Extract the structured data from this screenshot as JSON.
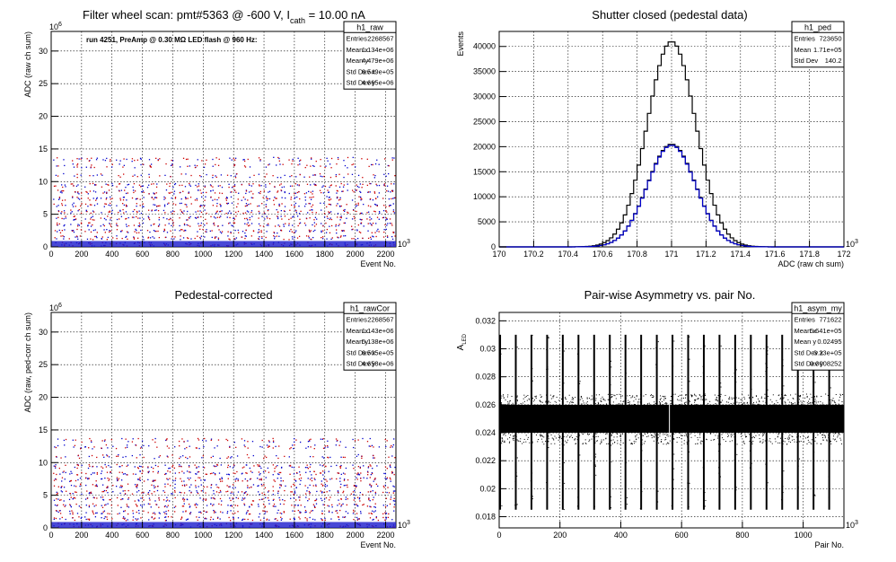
{
  "chart_data": [
    {
      "type": "scatter",
      "id": "raw",
      "title": "Filter wheel scan: pmt#5363 @  -600 V, I",
      "title_sub": "cath",
      "title_tail": " = 10.00 nA",
      "annotation": "run 4251, PreAmp @ 0.30 MΩ LED flash @  960 Hz:",
      "xlabel": "Event No.",
      "ylabel": "ADC (raw ch sum)",
      "xlim": [
        0,
        2268
      ],
      "ylim": [
        0,
        33
      ],
      "x_ticks": [
        0,
        200,
        400,
        600,
        800,
        1000,
        1200,
        1400,
        1600,
        1800,
        2000,
        2200
      ],
      "y_ticks": [
        0,
        5,
        10,
        15,
        20,
        25,
        30
      ],
      "x_exponent": "10",
      "x_exponent_power": "3",
      "y_exponent": "10",
      "y_exponent_power": "6",
      "grid": true,
      "series": [
        {
          "color": "#0000cc",
          "cycles": 22,
          "levels": [
            0.5,
            1.5,
            2.5,
            3.5,
            4.5,
            5.5,
            6.5,
            7.5,
            8.5,
            9.5,
            11.0,
            12.5,
            13.5
          ]
        },
        {
          "color": "#cc0000",
          "cycles": 22,
          "levels": [
            0.5,
            1.5,
            2.5,
            3.5,
            4.5,
            5.5,
            6.5,
            7.5,
            8.5,
            9.5,
            11.0,
            12.5,
            13.5
          ]
        }
      ],
      "stats": {
        "name": "h1_raw",
        "rows": [
          {
            "label": "Entries",
            "value": "2268567"
          },
          {
            "label": "Mean x",
            "value": "1.134e+06"
          },
          {
            "label": "Mean y",
            "value": "4.479e+06"
          },
          {
            "label": "Std Dev x",
            "value": "6.549e+05"
          },
          {
            "label": "Std Dev y",
            "value": "4.665e+06"
          }
        ]
      }
    },
    {
      "type": "line",
      "id": "ped",
      "title": "Shutter closed (pedestal data)",
      "xlabel": "ADC (raw ch sum)",
      "ylabel": "Events",
      "xlim": [
        170,
        172
      ],
      "ylim": [
        0,
        43000
      ],
      "x_ticks": [
        170,
        170.2,
        170.4,
        170.6,
        170.8,
        171,
        171.2,
        171.4,
        171.6,
        171.8,
        172
      ],
      "y_ticks": [
        0,
        5000,
        10000,
        15000,
        20000,
        25000,
        30000,
        35000,
        40000
      ],
      "x_exponent": "10",
      "x_exponent_power": "3",
      "grid": true,
      "series": [
        {
          "color": "#000000",
          "peak": 41000,
          "mean": 171.0,
          "sigma": 0.14
        },
        {
          "color": "#000000",
          "peak": 20500,
          "mean": 171.0,
          "sigma": 0.14
        },
        {
          "color": "#0000cc",
          "peak": 20300,
          "mean": 171.0,
          "sigma": 0.14
        }
      ],
      "stats": {
        "name": "h1_ped",
        "rows": [
          {
            "label": "Entries",
            "value": "723650"
          },
          {
            "label": "Mean",
            "value": "1.71e+05"
          },
          {
            "label": "Std Dev",
            "value": "140.2"
          }
        ]
      }
    },
    {
      "type": "scatter",
      "id": "rawcor",
      "title": "Pedestal-corrected",
      "xlabel": "Event No.",
      "ylabel": "ADC (raw, ped-corr ch sum)",
      "xlim": [
        0,
        2268
      ],
      "ylim": [
        0,
        33
      ],
      "x_ticks": [
        0,
        200,
        400,
        600,
        800,
        1000,
        1200,
        1400,
        1600,
        1800,
        2000,
        2200
      ],
      "y_ticks": [
        0,
        5,
        10,
        15,
        20,
        25,
        30
      ],
      "x_exponent": "10",
      "x_exponent_power": "3",
      "y_exponent": "10",
      "y_exponent_power": "6",
      "grid": true,
      "series": [
        {
          "color": "#0000cc",
          "cycles": 22,
          "levels": [
            0.5,
            1.5,
            2.5,
            3.5,
            4.5,
            5.5,
            6.5,
            7.5,
            8.5,
            9.5,
            11.0,
            12.5,
            13.5
          ]
        },
        {
          "color": "#cc0000",
          "cycles": 22,
          "levels": [
            0.5,
            1.5,
            2.5,
            3.5,
            4.5,
            5.5,
            6.5,
            7.5,
            8.5,
            9.5,
            11.0,
            12.5,
            13.5
          ]
        }
      ],
      "stats": {
        "name": "h1_rawCor",
        "rows": [
          {
            "label": "Entries",
            "value": "2268567"
          },
          {
            "label": "Mean x",
            "value": "1.143e+06"
          },
          {
            "label": "Mean y",
            "value": "5.138e+06"
          },
          {
            "label": "Std Dev x",
            "value": "6.505e+05"
          },
          {
            "label": "Std Dev y",
            "value": "4.658e+06"
          }
        ]
      }
    },
    {
      "type": "scatter",
      "id": "asym",
      "title": "Pair-wise Asymmetry vs. pair No.",
      "xlabel": "Pair No.",
      "ylabel": "A",
      "ylabel_sub": "LED",
      "xlim": [
        0,
        1134
      ],
      "ylim": [
        0.0172,
        0.0326
      ],
      "x_ticks": [
        0,
        200,
        400,
        600,
        800,
        1000
      ],
      "y_ticks": [
        0.018,
        0.02,
        0.022,
        0.024,
        0.026,
        0.028,
        0.03,
        0.032
      ],
      "x_exponent": "10",
      "x_exponent_power": "3",
      "grid": true,
      "series": [
        {
          "color": "#000000",
          "center": 0.025,
          "band_halfwidth": 0.001,
          "spike_count": 22,
          "spike_top": 0.031,
          "spike_bottom": 0.0185
        }
      ],
      "stats": {
        "name": "h1_asym_my",
        "rows": [
          {
            "label": "Entries",
            "value": "771622"
          },
          {
            "label": "Mean x",
            "value": "5.641e+05"
          },
          {
            "label": "Mean y",
            "value": "0.02495"
          },
          {
            "label": "Std Dev x",
            "value": "3.23e+05"
          },
          {
            "label": "Std Dev y",
            "value": "0.0008252"
          }
        ]
      }
    }
  ]
}
